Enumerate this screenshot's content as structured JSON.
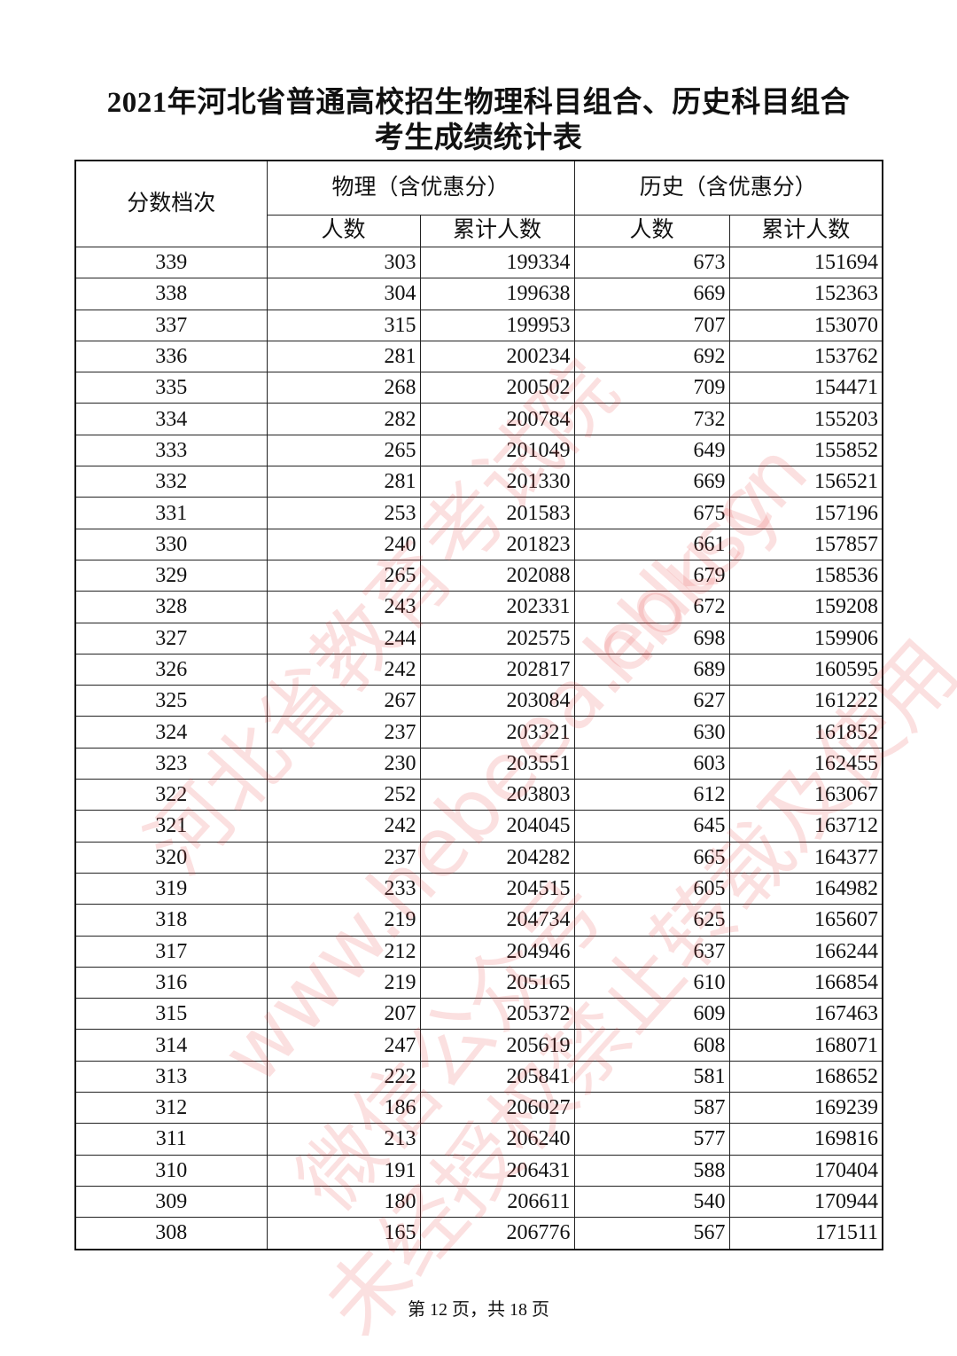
{
  "header": {
    "title_line1": "2021年河北省普通高校招生物理科目组合、历史科目组合",
    "title_line2": "考生成绩统计表"
  },
  "table": {
    "col_score": "分数档次",
    "group_physics": "物理（含优惠分）",
    "group_history": "历史（含优惠分）",
    "sub_count": "人数",
    "sub_cumulative": "累计人数",
    "rows": [
      [
        339,
        303,
        199334,
        673,
        151694
      ],
      [
        338,
        304,
        199638,
        669,
        152363
      ],
      [
        337,
        315,
        199953,
        707,
        153070
      ],
      [
        336,
        281,
        200234,
        692,
        153762
      ],
      [
        335,
        268,
        200502,
        709,
        154471
      ],
      [
        334,
        282,
        200784,
        732,
        155203
      ],
      [
        333,
        265,
        201049,
        649,
        155852
      ],
      [
        332,
        281,
        201330,
        669,
        156521
      ],
      [
        331,
        253,
        201583,
        675,
        157196
      ],
      [
        330,
        240,
        201823,
        661,
        157857
      ],
      [
        329,
        265,
        202088,
        679,
        158536
      ],
      [
        328,
        243,
        202331,
        672,
        159208
      ],
      [
        327,
        244,
        202575,
        698,
        159906
      ],
      [
        326,
        242,
        202817,
        689,
        160595
      ],
      [
        325,
        267,
        203084,
        627,
        161222
      ],
      [
        324,
        237,
        203321,
        630,
        161852
      ],
      [
        323,
        230,
        203551,
        603,
        162455
      ],
      [
        322,
        252,
        203803,
        612,
        163067
      ],
      [
        321,
        242,
        204045,
        645,
        163712
      ],
      [
        320,
        237,
        204282,
        665,
        164377
      ],
      [
        319,
        233,
        204515,
        605,
        164982
      ],
      [
        318,
        219,
        204734,
        625,
        165607
      ],
      [
        317,
        212,
        204946,
        637,
        166244
      ],
      [
        316,
        219,
        205165,
        610,
        166854
      ],
      [
        315,
        207,
        205372,
        609,
        167463
      ],
      [
        314,
        247,
        205619,
        608,
        168071
      ],
      [
        313,
        222,
        205841,
        581,
        168652
      ],
      [
        312,
        186,
        206027,
        587,
        169239
      ],
      [
        311,
        213,
        206240,
        577,
        169816
      ],
      [
        310,
        191,
        206431,
        588,
        170404
      ],
      [
        309,
        180,
        206611,
        540,
        170944
      ],
      [
        308,
        165,
        206776,
        567,
        171511
      ]
    ]
  },
  "watermark": [
    "河北省教育考试院",
    "www.hebeea.edu.cn",
    "hbksy",
    "微信公众号",
    "未经授权禁止转载及使用"
  ],
  "footer": {
    "page": "第 12 页，共 18 页"
  }
}
